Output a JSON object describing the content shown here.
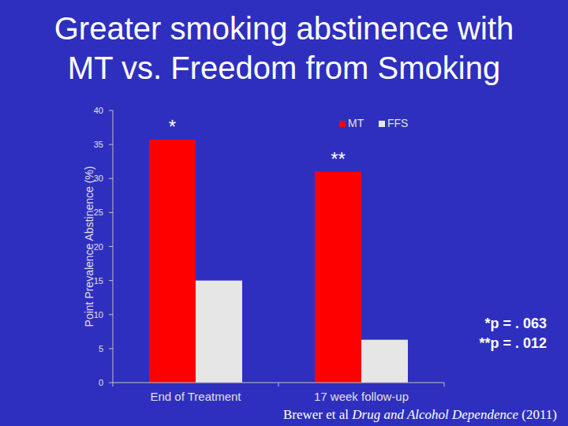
{
  "chart_data": {
    "type": "bar",
    "title": "Greater smoking abstinence with MT vs. Freedom from Smoking",
    "title_lines": [
      "Greater smoking abstinence with",
      "MT vs. Freedom from Smoking"
    ],
    "y_label": "Point Prevalence Abstinence (%)",
    "categories": [
      "End of Treatment",
      "17 week follow-up"
    ],
    "series": [
      {
        "name": "MT",
        "color": "#ff0000",
        "values": [
          35.7,
          31
        ]
      },
      {
        "name": "FFS",
        "color": "#e6e6e6",
        "values": [
          15,
          6.3
        ]
      }
    ],
    "ylim": [
      0,
      40
    ],
    "yticks": [
      0,
      5,
      10,
      15,
      20,
      25,
      30,
      35,
      40
    ],
    "grid": false,
    "legend": "top",
    "annotations": [
      {
        "text": "*",
        "category": "End of Treatment",
        "series": "MT"
      },
      {
        "text": "**",
        "category": "17 week follow-up",
        "series": "MT"
      }
    ],
    "notes": [
      "*p = . 063",
      "**p = . 012"
    ],
    "citation": {
      "author": "Brewer et al",
      "journal": "Drug and Alcohol Dependence",
      "year": "(2011)"
    }
  }
}
